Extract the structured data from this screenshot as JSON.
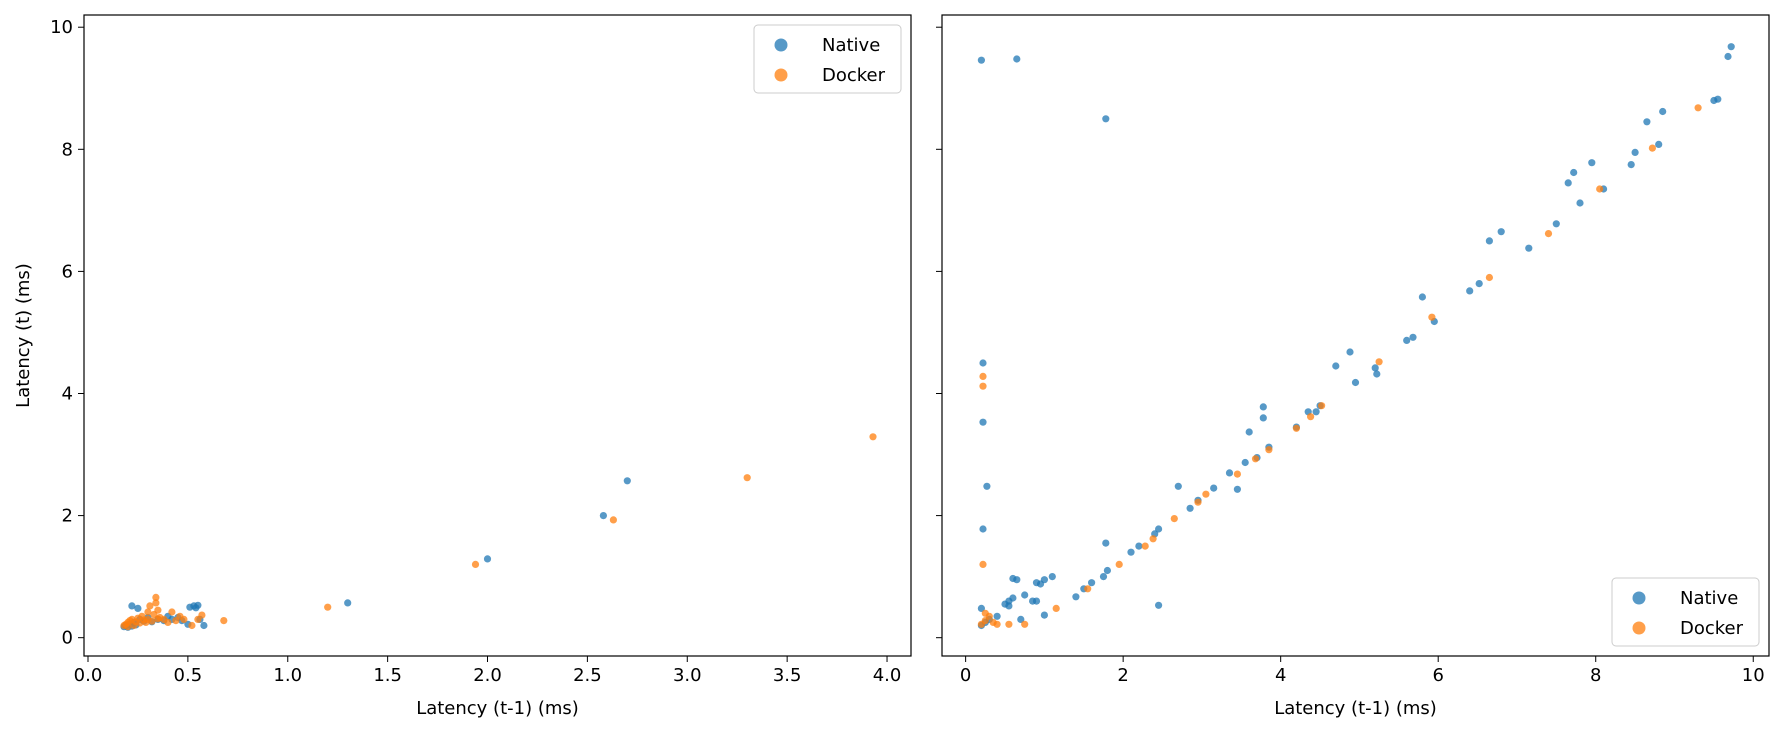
{
  "colors": {
    "native": "#1f77b4",
    "docker": "#ff7f0e"
  },
  "chart_data": [
    {
      "type": "scatter",
      "title": "",
      "xlabel": "Latency (t-1) (ms)",
      "ylabel": "Latency (t) (ms)",
      "xlim": [
        -0.02,
        4.12
      ],
      "ylim": [
        -0.3,
        10.2
      ],
      "xticks": [
        "0.0",
        "0.5",
        "1.0",
        "1.5",
        "2.0",
        "2.5",
        "3.0",
        "3.5",
        "4.0"
      ],
      "yticks": [
        "0",
        "2",
        "4",
        "6",
        "8",
        "10"
      ],
      "legend": {
        "position": "upper-right",
        "entries": [
          "Native",
          "Docker"
        ]
      },
      "series": [
        {
          "name": "Native",
          "points": [
            [
              0.18,
              0.18
            ],
            [
              0.19,
              0.2
            ],
            [
              0.2,
              0.17
            ],
            [
              0.21,
              0.22
            ],
            [
              0.22,
              0.19
            ],
            [
              0.23,
              0.25
            ],
            [
              0.24,
              0.21
            ],
            [
              0.22,
              0.52
            ],
            [
              0.25,
              0.48
            ],
            [
              0.26,
              0.3
            ],
            [
              0.28,
              0.27
            ],
            [
              0.3,
              0.33
            ],
            [
              0.32,
              0.26
            ],
            [
              0.35,
              0.3
            ],
            [
              0.38,
              0.28
            ],
            [
              0.4,
              0.35
            ],
            [
              0.42,
              0.3
            ],
            [
              0.45,
              0.33
            ],
            [
              0.47,
              0.28
            ],
            [
              0.5,
              0.22
            ],
            [
              0.51,
              0.5
            ],
            [
              0.53,
              0.52
            ],
            [
              0.55,
              0.53
            ],
            [
              0.54,
              0.49
            ],
            [
              0.58,
              0.2
            ],
            [
              0.56,
              0.3
            ],
            [
              1.3,
              0.57
            ],
            [
              2.0,
              1.29
            ],
            [
              2.58,
              2.0
            ],
            [
              2.7,
              2.57
            ]
          ]
        },
        {
          "name": "Docker",
          "points": [
            [
              0.18,
              0.2
            ],
            [
              0.19,
              0.22
            ],
            [
              0.2,
              0.18
            ],
            [
              0.2,
              0.25
            ],
            [
              0.21,
              0.28
            ],
            [
              0.22,
              0.3
            ],
            [
              0.23,
              0.2
            ],
            [
              0.24,
              0.26
            ],
            [
              0.25,
              0.32
            ],
            [
              0.26,
              0.24
            ],
            [
              0.27,
              0.35
            ],
            [
              0.28,
              0.29
            ],
            [
              0.29,
              0.25
            ],
            [
              0.3,
              0.42
            ],
            [
              0.3,
              0.3
            ],
            [
              0.31,
              0.52
            ],
            [
              0.32,
              0.27
            ],
            [
              0.33,
              0.38
            ],
            [
              0.34,
              0.66
            ],
            [
              0.34,
              0.57
            ],
            [
              0.35,
              0.45
            ],
            [
              0.35,
              0.31
            ],
            [
              0.36,
              0.33
            ],
            [
              0.38,
              0.3
            ],
            [
              0.4,
              0.25
            ],
            [
              0.42,
              0.42
            ],
            [
              0.44,
              0.28
            ],
            [
              0.46,
              0.35
            ],
            [
              0.48,
              0.3
            ],
            [
              0.52,
              0.2
            ],
            [
              0.55,
              0.3
            ],
            [
              0.57,
              0.37
            ],
            [
              0.68,
              0.28
            ],
            [
              1.2,
              0.5
            ],
            [
              1.94,
              1.2
            ],
            [
              2.63,
              1.93
            ],
            [
              3.3,
              2.62
            ],
            [
              3.93,
              3.29
            ]
          ]
        }
      ]
    },
    {
      "type": "scatter",
      "title": "",
      "xlabel": "Latency (t-1) (ms)",
      "ylabel": "",
      "xlim": [
        -0.3,
        10.2
      ],
      "ylim": [
        -0.3,
        10.2
      ],
      "xticks": [
        "0",
        "2",
        "4",
        "6",
        "8",
        "10"
      ],
      "yticks": [
        "0",
        "2",
        "4",
        "6",
        "8",
        "10"
      ],
      "legend": {
        "position": "lower-right",
        "entries": [
          "Native",
          "Docker"
        ]
      },
      "series": [
        {
          "name": "Native",
          "points": [
            [
              0.2,
              9.46
            ],
            [
              0.65,
              9.48
            ],
            [
              1.78,
              8.5
            ],
            [
              0.22,
              4.5
            ],
            [
              0.22,
              3.53
            ],
            [
              0.27,
              2.48
            ],
            [
              0.22,
              1.78
            ],
            [
              0.2,
              0.48
            ],
            [
              0.2,
              0.2
            ],
            [
              0.25,
              0.25
            ],
            [
              0.3,
              0.3
            ],
            [
              0.4,
              0.35
            ],
            [
              0.5,
              0.55
            ],
            [
              0.55,
              0.6
            ],
            [
              0.6,
              0.65
            ],
            [
              0.55,
              0.52
            ],
            [
              0.6,
              0.97
            ],
            [
              0.65,
              0.95
            ],
            [
              0.7,
              0.3
            ],
            [
              0.75,
              0.7
            ],
            [
              0.85,
              0.6
            ],
            [
              0.9,
              0.9
            ],
            [
              0.95,
              0.88
            ],
            [
              1.0,
              0.95
            ],
            [
              0.9,
              0.6
            ],
            [
              1.0,
              0.37
            ],
            [
              1.1,
              1.0
            ],
            [
              1.4,
              0.67
            ],
            [
              1.5,
              0.8
            ],
            [
              1.6,
              0.9
            ],
            [
              1.75,
              1.0
            ],
            [
              1.8,
              1.1
            ],
            [
              1.78,
              1.55
            ],
            [
              2.1,
              1.4
            ],
            [
              2.2,
              1.5
            ],
            [
              2.4,
              1.7
            ],
            [
              2.45,
              1.78
            ],
            [
              2.45,
              0.53
            ],
            [
              2.7,
              2.48
            ],
            [
              2.85,
              2.12
            ],
            [
              2.95,
              2.25
            ],
            [
              3.15,
              2.45
            ],
            [
              3.35,
              2.7
            ],
            [
              3.45,
              2.43
            ],
            [
              3.55,
              2.87
            ],
            [
              3.6,
              3.37
            ],
            [
              3.7,
              2.95
            ],
            [
              3.78,
              3.78
            ],
            [
              3.78,
              3.6
            ],
            [
              3.85,
              3.12
            ],
            [
              4.2,
              3.45
            ],
            [
              4.35,
              3.7
            ],
            [
              4.45,
              3.7
            ],
            [
              4.5,
              3.8
            ],
            [
              4.7,
              4.45
            ],
            [
              4.88,
              4.68
            ],
            [
              4.95,
              4.18
            ],
            [
              5.2,
              4.42
            ],
            [
              5.22,
              4.32
            ],
            [
              5.6,
              4.87
            ],
            [
              5.68,
              4.92
            ],
            [
              5.8,
              5.58
            ],
            [
              5.95,
              5.18
            ],
            [
              6.4,
              5.68
            ],
            [
              6.52,
              5.8
            ],
            [
              6.65,
              6.5
            ],
            [
              6.8,
              6.65
            ],
            [
              7.15,
              6.38
            ],
            [
              7.5,
              6.78
            ],
            [
              7.65,
              7.45
            ],
            [
              7.72,
              7.62
            ],
            [
              7.8,
              7.12
            ],
            [
              7.95,
              7.78
            ],
            [
              8.1,
              7.35
            ],
            [
              8.45,
              7.75
            ],
            [
              8.5,
              7.95
            ],
            [
              8.65,
              8.45
            ],
            [
              8.8,
              8.08
            ],
            [
              8.85,
              8.62
            ],
            [
              9.5,
              8.8
            ],
            [
              9.55,
              8.82
            ],
            [
              9.68,
              9.52
            ],
            [
              9.72,
              9.68
            ]
          ]
        },
        {
          "name": "Docker",
          "points": [
            [
              0.22,
              4.28
            ],
            [
              0.22,
              4.12
            ],
            [
              0.22,
              1.2
            ],
            [
              0.2,
              0.22
            ],
            [
              0.25,
              0.28
            ],
            [
              0.3,
              0.35
            ],
            [
              0.35,
              0.25
            ],
            [
              0.25,
              0.4
            ],
            [
              0.4,
              0.22
            ],
            [
              0.55,
              0.22
            ],
            [
              0.75,
              0.22
            ],
            [
              1.15,
              0.48
            ],
            [
              1.55,
              0.8
            ],
            [
              1.95,
              1.2
            ],
            [
              2.28,
              1.5
            ],
            [
              2.38,
              1.62
            ],
            [
              2.65,
              1.95
            ],
            [
              2.95,
              2.22
            ],
            [
              3.05,
              2.35
            ],
            [
              3.45,
              2.68
            ],
            [
              3.68,
              2.93
            ],
            [
              3.85,
              3.08
            ],
            [
              4.2,
              3.43
            ],
            [
              4.38,
              3.62
            ],
            [
              4.52,
              3.8
            ],
            [
              5.25,
              4.52
            ],
            [
              5.92,
              5.25
            ],
            [
              6.65,
              5.9
            ],
            [
              7.4,
              6.62
            ],
            [
              8.05,
              7.35
            ],
            [
              8.72,
              8.02
            ],
            [
              9.3,
              8.68
            ]
          ]
        }
      ]
    }
  ]
}
